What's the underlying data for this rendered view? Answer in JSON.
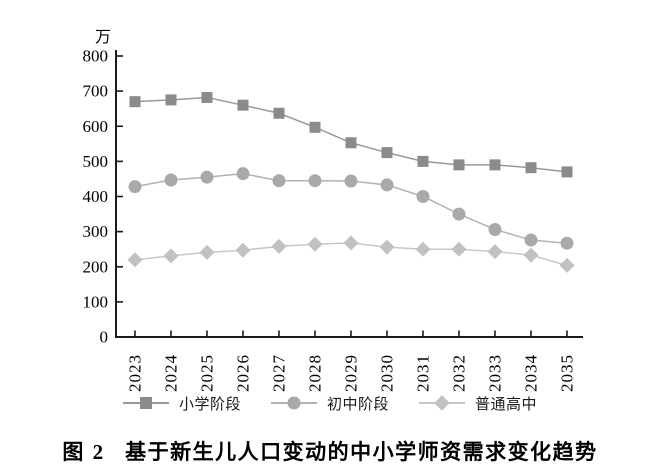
{
  "figure": {
    "caption_label": "图 2",
    "caption_text": "基于新生儿人口变动的中小学师资需求变化趋势"
  },
  "chart_data": {
    "type": "line",
    "title": "图 2 基于新生儿人口变动的中小学师资需求变化趋势",
    "ylabel": "万",
    "xlabel": "",
    "ylim": [
      0,
      800
    ],
    "ytick_step": 100,
    "grid": false,
    "legend_position": "bottom",
    "axis_color": "#1a1a1a",
    "categories": [
      "2023",
      "2024",
      "2025",
      "2026",
      "2027",
      "2028",
      "2029",
      "2030",
      "2031",
      "2032",
      "2033",
      "2034",
      "2035"
    ],
    "series": [
      {
        "name": "小学阶段",
        "marker": "square",
        "color": "#8b8b8b",
        "line_color": "#999999",
        "values": [
          670,
          675,
          682,
          660,
          637,
          597,
          553,
          525,
          500,
          490,
          490,
          482,
          470
        ]
      },
      {
        "name": "初中阶段",
        "marker": "circle",
        "color": "#a9a9a9",
        "line_color": "#b2b2b2",
        "values": [
          428,
          447,
          455,
          465,
          445,
          445,
          444,
          433,
          400,
          350,
          306,
          276,
          267
        ]
      },
      {
        "name": "普通高中",
        "marker": "diamond",
        "color": "#c1c1c1",
        "line_color": "#c7c7c7",
        "values": [
          220,
          231,
          241,
          247,
          258,
          264,
          268,
          256,
          250,
          250,
          243,
          233,
          204
        ]
      }
    ]
  }
}
